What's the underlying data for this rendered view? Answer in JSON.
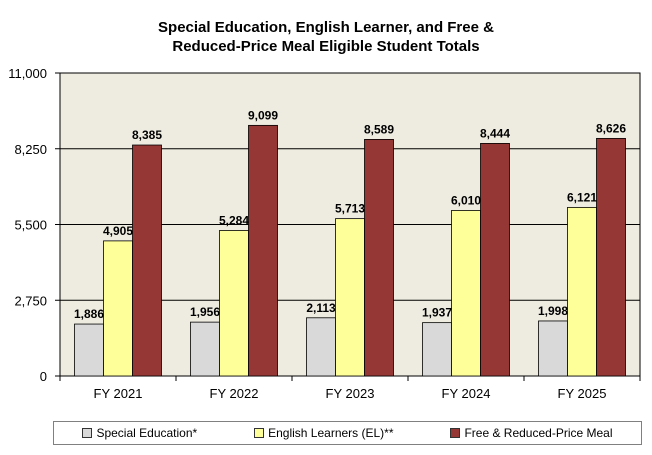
{
  "chart_data": {
    "type": "bar",
    "title_lines": [
      "Special Education, English Learner, and Free &",
      "Reduced-Price Meal Eligible Student Totals"
    ],
    "categories": [
      "FY 2021",
      "FY 2022",
      "FY 2023",
      "FY 2024",
      "FY 2025"
    ],
    "series": [
      {
        "name": "Special Education*",
        "color": "#d9d9d9",
        "values": [
          1886,
          1956,
          2113,
          1937,
          1998
        ],
        "labels": [
          "1,886",
          "1,956",
          "2,113",
          "1,937",
          "1,998"
        ]
      },
      {
        "name": "English Learners (EL)**",
        "color": "#ffff99",
        "values": [
          4905,
          5284,
          5713,
          6010,
          6121
        ],
        "labels": [
          "4,905",
          "5,284",
          "5,713",
          "6,010",
          "6,121"
        ]
      },
      {
        "name": "Free & Reduced-Price Meal",
        "color": "#953735",
        "values": [
          8385,
          9099,
          8589,
          8444,
          8626
        ],
        "labels": [
          "8,385",
          "9,099",
          "8,589",
          "8,444",
          "8,626"
        ]
      }
    ],
    "ylim": [
      0,
      11000
    ],
    "yticks": [
      0,
      2750,
      5500,
      8250,
      11000
    ],
    "ytick_labels": [
      "0",
      "2,750",
      "5,500",
      "8,250",
      "11,000"
    ],
    "grid": true,
    "plot_background": "#eeece1",
    "legend_position": "bottom"
  }
}
